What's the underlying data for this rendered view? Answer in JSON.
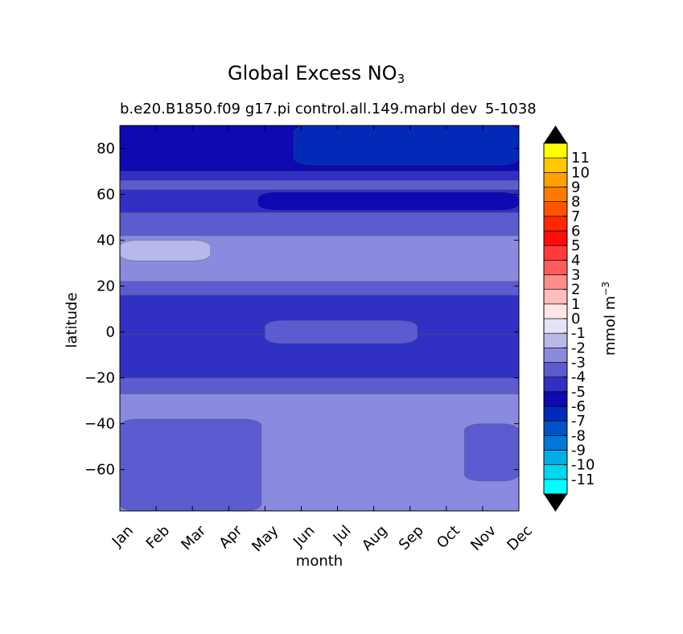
{
  "chart_data": {
    "type": "heatmap",
    "title": "Global Excess NO",
    "title_subscript": "3",
    "subtitle": "b.e20.B1850.f09 g17.pi control.all.149.marbl dev",
    "subtitle_right": "5-1038",
    "xlabel": "month",
    "ylabel": "latitude",
    "x_categories": [
      "Jan",
      "Feb",
      "Mar",
      "Apr",
      "May",
      "Jun",
      "Jul",
      "Aug",
      "Sep",
      "Oct",
      "Nov",
      "Dec"
    ],
    "xlim": [
      0,
      11
    ],
    "ylim": [
      -78,
      90
    ],
    "y_ticks": [
      80,
      60,
      40,
      20,
      0,
      -20,
      -40,
      -60
    ],
    "y_tick_labels": [
      "80",
      "60",
      "40",
      "20",
      "0",
      "−20",
      "−40",
      "−60"
    ],
    "colorbar": {
      "label": "mmol m",
      "label_exponent": "−3",
      "levels": [
        -12,
        -11,
        -10,
        -9,
        -8,
        -7,
        -6,
        -5,
        -4,
        -3,
        -2,
        -1,
        0,
        1,
        2,
        3,
        4,
        5,
        6,
        7,
        8,
        9,
        10,
        11,
        12
      ],
      "tick_labels": [
        "-11",
        "-10",
        "-9",
        "-8",
        "-7",
        "-6",
        "-5",
        "-4",
        "-3",
        "-2",
        "-1",
        "0",
        "1",
        "2",
        "3",
        "4",
        "5",
        "6",
        "7",
        "8",
        "9",
        "10",
        "11"
      ],
      "colors": [
        "#00ffff",
        "#00d6f0",
        "#00aee5",
        "#0079d9",
        "#0052c7",
        "#002ab7",
        "#0d0ab1",
        "#3030c4",
        "#5c5cd0",
        "#8a8ade",
        "#b8b8ea",
        "#e4e4f6",
        "#ffe6e6",
        "#ffbdbd",
        "#ff8d8d",
        "#ff5c5c",
        "#ff3a3a",
        "#ff0c0c",
        "#ff2800",
        "#ff5400",
        "#ff7a00",
        "#ffa000",
        "#ffc800",
        "#ffff00"
      ],
      "over_color": "#000000",
      "under_color": "#000000"
    },
    "bands": [
      {
        "lat_top": 90,
        "lat_bottom": 70,
        "value": -6
      },
      {
        "lat_top": 70,
        "lat_bottom": 66,
        "value": -5
      },
      {
        "lat_top": 66,
        "lat_bottom": 62,
        "value": -4
      },
      {
        "lat_top": 62,
        "lat_bottom": 52,
        "value": -5
      },
      {
        "lat_top": 52,
        "lat_bottom": 42,
        "value": -4
      },
      {
        "lat_top": 42,
        "lat_bottom": 22,
        "value": -3
      },
      {
        "lat_top": 22,
        "lat_bottom": 16,
        "value": -4
      },
      {
        "lat_top": 16,
        "lat_bottom": -1,
        "value": -5
      },
      {
        "lat_top": -1,
        "lat_bottom": -20,
        "value": -5
      },
      {
        "lat_top": -20,
        "lat_bottom": -27,
        "value": -4
      },
      {
        "lat_top": -27,
        "lat_bottom": -78,
        "value": -3
      }
    ],
    "regions": [
      {
        "name": "arctic-high",
        "value": -7,
        "months": [
          4.8,
          11
        ],
        "lat_range": [
          73,
          90
        ]
      },
      {
        "name": "midlat-low",
        "value": -6,
        "months": [
          3.8,
          11
        ],
        "lat_range": [
          53,
          61
        ]
      },
      {
        "name": "north-tropics-min",
        "value": -2,
        "months": [
          0,
          2.5
        ],
        "lat_range": [
          31,
          40
        ]
      },
      {
        "name": "southern-ocean",
        "value": -4,
        "months": [
          0,
          3.9
        ],
        "lat_range": [
          -78,
          -38
        ]
      },
      {
        "name": "southern-ocean-late",
        "value": -4,
        "months": [
          9.5,
          11
        ],
        "lat_range": [
          -65,
          -40
        ]
      },
      {
        "name": "equatorial",
        "value": -4,
        "months": [
          4,
          8.2
        ],
        "lat_range": [
          -5,
          5
        ]
      }
    ]
  }
}
